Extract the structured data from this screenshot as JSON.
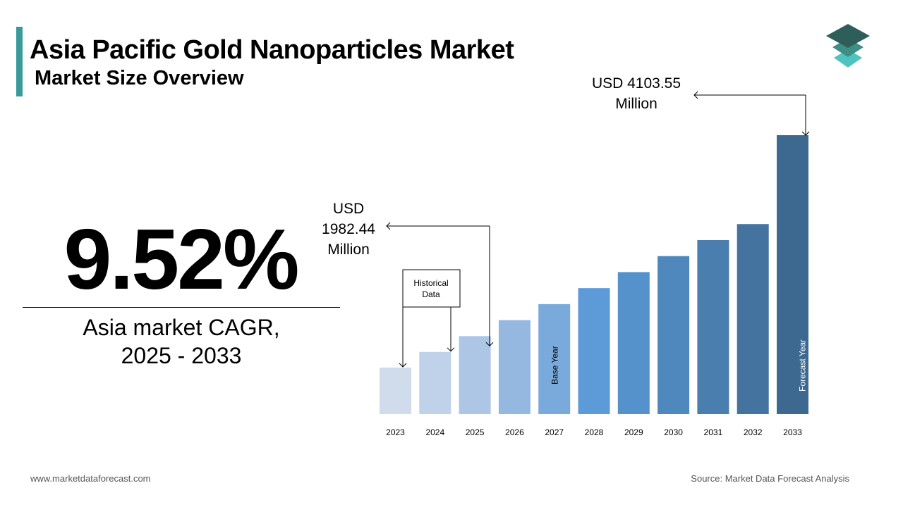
{
  "header": {
    "title": "Asia Pacific Gold Nanoparticles Market",
    "subtitle": "Market Size Overview"
  },
  "cagr": {
    "value": "9.52%",
    "label_line1": "Asia market CAGR,",
    "label_line2": "2025 - 2033"
  },
  "callouts": {
    "start_value": "USD 1982.44 Million",
    "end_value": "USD 4103.55 Million"
  },
  "footer": {
    "website": "www.marketdataforecast.com",
    "source": "Source: Market Data Forecast Analysis"
  },
  "logo": {
    "icon": "stacked-layers-icon",
    "colors": [
      "#2e5e5a",
      "#3d8f86",
      "#4fc3c0"
    ]
  },
  "chart_data": {
    "type": "bar",
    "categories": [
      "2023",
      "2024",
      "2025",
      "2026",
      "2027",
      "2028",
      "2029",
      "2030",
      "2031",
      "2032",
      "2033"
    ],
    "values": [
      1650,
      1815,
      1982.44,
      2151,
      2320,
      2489,
      2658,
      2827,
      2996,
      3165,
      4103.55
    ],
    "colors": [
      "#d0dcec",
      "#c0d1ea",
      "#adc6e6",
      "#95b8e0",
      "#7aaadc",
      "#5d9bd8",
      "#5592cb",
      "#4f88bd",
      "#4a7eae",
      "#44739f",
      "#3d6890"
    ],
    "inner_labels": [
      {
        "category": "2027",
        "text": "Base Year"
      },
      {
        "category": "2033",
        "text": "Forecast Year"
      }
    ],
    "annotation_box": "Historical\nData",
    "xlabel": "",
    "ylabel": ""
  }
}
